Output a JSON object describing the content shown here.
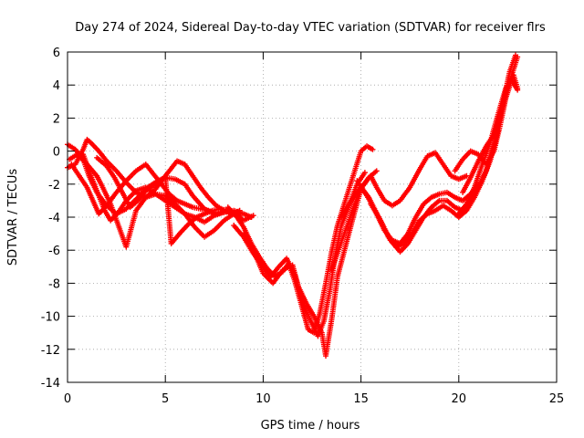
{
  "chart_data": {
    "type": "scatter",
    "title": "Day 274 of 2024, Sidereal Day-to-day VTEC variation (SDTVAR) for receiver flrs",
    "xlabel": "GPS time / hours",
    "ylabel": "SDTVAR / TECUs",
    "xlim": [
      0,
      25
    ],
    "ylim": [
      -14,
      6
    ],
    "x_ticks": [
      0,
      5,
      10,
      15,
      20,
      25
    ],
    "y_ticks": [
      -14,
      -12,
      -10,
      -8,
      -6,
      -4,
      -2,
      0,
      2,
      4,
      6
    ],
    "x_tick_labels": [
      "0",
      "5",
      "10",
      "15",
      "20",
      "25"
    ],
    "y_tick_labels": [
      "-14",
      "-12",
      "-10",
      "-8",
      "-6",
      "-4",
      "-2",
      "0",
      "2",
      "4",
      "6"
    ],
    "grid": true,
    "marker": "+",
    "color": "#ff0000",
    "series": [
      {
        "x": [
          0,
          0.4,
          0.8,
          1.1,
          1.5,
          2.0,
          2.5,
          3.0,
          3.6,
          4.1,
          4.6,
          5.0,
          5.5,
          6.0,
          6.4,
          7.0,
          7.5,
          8.0,
          8.5,
          9.0,
          9.4
        ],
        "y": [
          0.4,
          0.1,
          -0.5,
          -1.5,
          -2.5,
          -3.3,
          -3.8,
          -3.5,
          -2.8,
          -2.2,
          -1.8,
          -1.6,
          -1.7,
          -2.0,
          -2.7,
          -3.5,
          -3.8,
          -3.7,
          -3.6,
          -3.8,
          -4.0
        ]
      },
      {
        "x": [
          0,
          0.4,
          0.8,
          1.0,
          1.2,
          1.6,
          2.0,
          2.5,
          3.0,
          3.5,
          4.0,
          4.5,
          5.0,
          5.5,
          6.0,
          6.5,
          7.0,
          7.5,
          8.0,
          8.5,
          8.8
        ],
        "y": [
          -1.0,
          -0.8,
          0.1,
          0.7,
          0.5,
          0.0,
          -0.6,
          -1.2,
          -1.9,
          -2.5,
          -2.8,
          -2.6,
          -2.7,
          -3.2,
          -3.8,
          -4.6,
          -5.2,
          -4.8,
          -4.2,
          -3.8,
          -3.6
        ]
      },
      {
        "x": [
          0.1,
          0.5,
          1.0,
          1.5,
          1.8,
          2.2,
          2.6,
          3.0,
          3.5,
          4.0,
          4.5,
          4.8,
          5.2,
          5.6,
          6.0,
          6.4,
          6.8,
          7.2,
          7.6,
          8.0,
          8.4,
          8.8
        ],
        "y": [
          -0.5,
          -0.2,
          -0.8,
          -1.5,
          -2.2,
          -3.2,
          -4.5,
          -5.8,
          -3.6,
          -2.8,
          -2.3,
          -1.8,
          -1.2,
          -0.6,
          -0.8,
          -1.5,
          -2.2,
          -2.8,
          -3.3,
          -3.6,
          -3.8,
          -3.9
        ]
      },
      {
        "x": [
          0.8,
          1.2,
          1.6,
          1.9,
          2.2,
          2.6,
          3.0,
          3.5,
          4.0,
          4.5,
          5.0,
          5.5,
          6.0,
          6.5,
          7.0,
          7.5,
          8.0
        ],
        "y": [
          -0.2,
          -1.5,
          -2.7,
          -3.6,
          -4.2,
          -3.7,
          -3.0,
          -2.4,
          -2.2,
          -2.6,
          -3.0,
          -3.4,
          -3.8,
          -4.0,
          -4.3,
          -3.9,
          -3.7
        ]
      },
      {
        "x": [
          0.2,
          0.6,
          1.0,
          1.3,
          1.6,
          2.0,
          2.5,
          3.0,
          3.5,
          4.0,
          4.4,
          4.8,
          5.2,
          5.6,
          6.0,
          6.4,
          6.8,
          7.2,
          7.6,
          8.0
        ],
        "y": [
          -0.8,
          -1.5,
          -2.2,
          -3.0,
          -3.8,
          -3.3,
          -2.5,
          -1.8,
          -1.2,
          -0.8,
          -1.4,
          -2.0,
          -2.6,
          -3.0,
          -3.2,
          -3.4,
          -3.5,
          -3.6,
          -3.8,
          -3.7
        ]
      },
      {
        "x": [
          1.5,
          2.0,
          2.4,
          2.8,
          3.2,
          3.6,
          4.0,
          4.5,
          5.0,
          5.3,
          5.8,
          6.2,
          6.6,
          7.0,
          7.4,
          7.8,
          8.2,
          8.6,
          9.0,
          9.5
        ],
        "y": [
          -0.4,
          -0.9,
          -1.6,
          -2.5,
          -3.4,
          -3.0,
          -2.4,
          -2.0,
          -1.6,
          -5.6,
          -4.9,
          -4.4,
          -4.0,
          -3.8,
          -3.6,
          -3.5,
          -3.6,
          -3.8,
          -4.2,
          -3.9
        ]
      },
      {
        "x": [
          8.2,
          8.6,
          9.0,
          9.4,
          9.8,
          10.2,
          10.6,
          11.0,
          11.3,
          11.6,
          12.0,
          12.3,
          12.6,
          12.9,
          13.2,
          13.5,
          13.8,
          14.2,
          14.6,
          15.0,
          15.3,
          15.6
        ],
        "y": [
          -3.4,
          -3.9,
          -4.6,
          -5.6,
          -6.4,
          -7.1,
          -7.6,
          -7.3,
          -6.8,
          -7.8,
          -9.5,
          -10.8,
          -11.0,
          -9.8,
          -8.0,
          -6.1,
          -4.5,
          -3.0,
          -1.5,
          0.0,
          0.3,
          0.1
        ]
      },
      {
        "x": [
          8.5,
          9.0,
          9.5,
          10.0,
          10.4,
          10.8,
          11.2,
          11.6,
          12.0,
          12.4,
          12.8,
          13.1,
          13.4,
          13.7,
          14.0,
          14.4,
          14.8,
          15.2
        ],
        "y": [
          -4.5,
          -5.2,
          -6.2,
          -7.0,
          -7.6,
          -7.0,
          -6.5,
          -7.5,
          -9.0,
          -10.2,
          -11.2,
          -10.3,
          -8.5,
          -6.2,
          -4.5,
          -3.3,
          -2.0,
          -1.3
        ]
      },
      {
        "x": [
          9.0,
          9.5,
          10.0,
          10.5,
          11.0,
          11.5,
          11.8,
          12.2,
          12.6,
          13.0,
          13.2,
          13.5,
          13.8,
          14.2,
          14.6,
          15.0,
          15.4,
          15.8
        ],
        "y": [
          -5.0,
          -6.0,
          -7.4,
          -8.0,
          -7.2,
          -6.9,
          -8.2,
          -9.2,
          -10.0,
          -11.0,
          -12.4,
          -10.2,
          -7.6,
          -5.8,
          -4.0,
          -2.3,
          -1.6,
          -1.2
        ]
      },
      {
        "x": [
          13.5,
          14.0,
          14.5,
          15.0,
          15.5,
          15.8,
          16.2,
          16.6,
          17.0,
          17.5,
          18.0,
          18.4,
          18.8,
          19.2,
          19.6,
          20.0,
          20.4
        ],
        "y": [
          -7.2,
          -5.5,
          -3.8,
          -2.2,
          -1.5,
          -2.2,
          -3.0,
          -3.3,
          -3.0,
          -2.2,
          -1.1,
          -0.3,
          -0.1,
          -0.8,
          -1.5,
          -1.7,
          -1.5
        ]
      },
      {
        "x": [
          14.0,
          14.5,
          15.0,
          15.4,
          15.8,
          16.2,
          16.6,
          17.0,
          17.4,
          17.8,
          18.2,
          18.6,
          19.0,
          19.4,
          19.8,
          20.2,
          20.6,
          21.0
        ],
        "y": [
          -4.0,
          -3.0,
          -2.2,
          -2.8,
          -3.8,
          -4.8,
          -5.4,
          -5.6,
          -5.0,
          -4.0,
          -3.2,
          -2.8,
          -2.6,
          -2.5,
          -2.8,
          -3.0,
          -2.6,
          -2.0
        ]
      },
      {
        "x": [
          14.8,
          15.2,
          15.6,
          16.0,
          16.4,
          16.8,
          17.2,
          17.6,
          18.0,
          18.4,
          18.8,
          19.2,
          19.6,
          20.0,
          20.4,
          20.8,
          21.2,
          21.6,
          22.0
        ],
        "y": [
          -1.8,
          -2.5,
          -3.3,
          -4.2,
          -5.2,
          -5.8,
          -5.6,
          -5.0,
          -4.2,
          -3.8,
          -3.6,
          -3.3,
          -3.6,
          -4.0,
          -3.6,
          -2.8,
          -1.8,
          -0.6,
          1.2
        ]
      },
      {
        "x": [
          15.5,
          16.0,
          16.5,
          17.0,
          17.4,
          17.8,
          18.2,
          18.6,
          19.0,
          19.4,
          19.8,
          20.2,
          20.6,
          21.0,
          21.4,
          21.8,
          22.2,
          22.6,
          23.0
        ],
        "y": [
          -3.2,
          -4.2,
          -5.4,
          -6.1,
          -5.6,
          -4.8,
          -4.0,
          -3.4,
          -3.0,
          -3.0,
          -3.4,
          -3.6,
          -3.0,
          -2.2,
          -1.2,
          0.5,
          2.5,
          4.2,
          5.7
        ]
      },
      {
        "x": [
          19.8,
          20.2,
          20.6,
          21.0,
          21.4,
          21.8,
          22.1,
          22.4,
          22.7,
          23.0
        ],
        "y": [
          -1.2,
          -0.5,
          0.0,
          -0.2,
          -0.8,
          0.0,
          1.5,
          3.2,
          4.3,
          3.7
        ]
      },
      {
        "x": [
          20.0,
          20.4,
          20.8,
          21.2,
          21.6,
          22.0,
          22.4,
          22.8,
          23.0
        ],
        "y": [
          -3.8,
          -3.2,
          -2.2,
          -0.8,
          0.5,
          2.2,
          3.8,
          4.6,
          3.8
        ]
      },
      {
        "x": [
          20.2,
          20.6,
          21.0,
          21.4,
          21.8,
          22.2,
          22.6,
          22.9
        ],
        "y": [
          -2.5,
          -1.6,
          -0.6,
          0.3,
          1.0,
          2.6,
          4.8,
          5.8
        ]
      }
    ]
  }
}
